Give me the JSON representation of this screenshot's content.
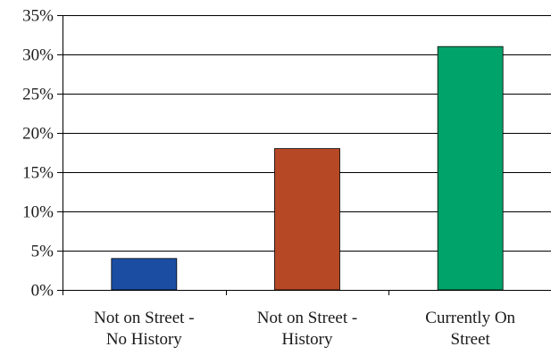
{
  "chart_data": {
    "type": "bar",
    "categories": [
      [
        "Not on Street -",
        "No History"
      ],
      [
        "Not on Street -",
        "History"
      ],
      [
        "Currently On",
        "Street"
      ]
    ],
    "values": [
      4,
      18,
      31
    ],
    "bar_colors": [
      "#1b4ea3",
      "#b64826",
      "#00a36a"
    ],
    "ylim": [
      0,
      35
    ],
    "y_ticks": [
      0,
      5,
      10,
      15,
      20,
      25,
      30,
      35
    ],
    "y_tick_labels": [
      "0%",
      "5%",
      "10%",
      "15%",
      "20%",
      "25%",
      "30%",
      "35%"
    ],
    "grid": true,
    "title": "",
    "xlabel": "",
    "ylabel": ""
  }
}
